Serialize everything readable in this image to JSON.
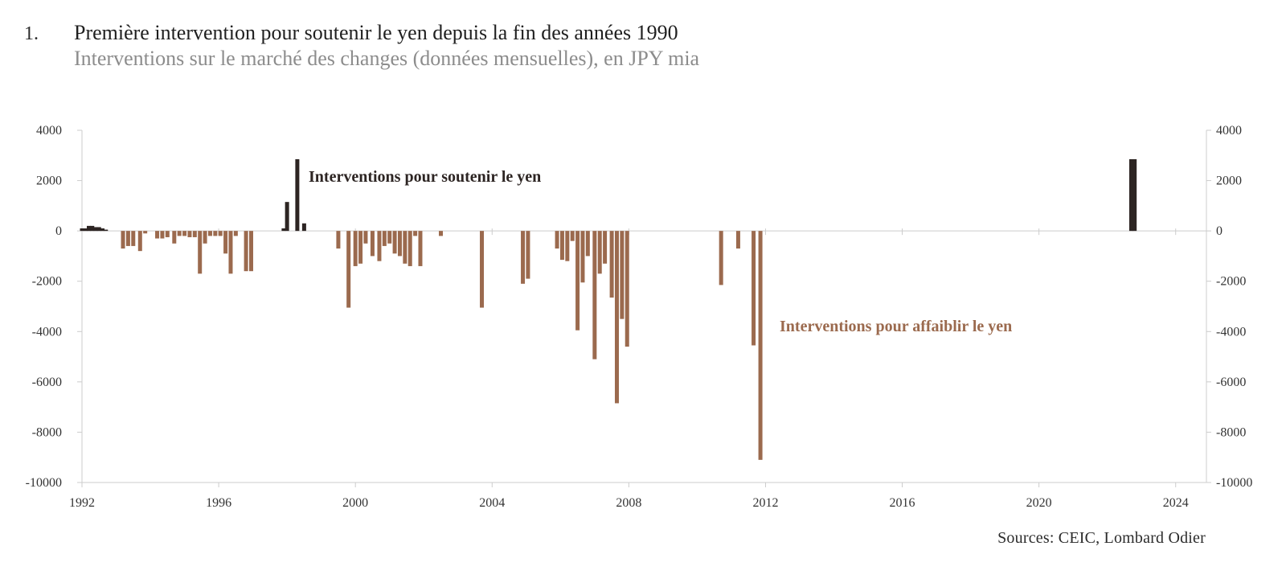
{
  "header": {
    "number": "1.",
    "title": "Première intervention pour soutenir le yen depuis la fin des années 1990",
    "subtitle": "Interventions sur le marché des changes (données mensuelles), en JPY mia"
  },
  "source": "Sources: CEIC, Lombard Odier",
  "colors": {
    "support": "#2d2523",
    "weaken": "#9b6a4e",
    "axis": "#cccccc",
    "text": "#2b2b2b"
  },
  "chart_data": {
    "type": "bar",
    "x_axis": {
      "min": 1992,
      "max": 2024.9,
      "ticks": [
        1992,
        1996,
        2000,
        2004,
        2008,
        2012,
        2016,
        2020,
        2024
      ]
    },
    "y_axis": {
      "min": -10000,
      "max": 4000,
      "ticks": [
        4000,
        2000,
        0,
        -2000,
        -4000,
        -6000,
        -8000,
        -10000
      ],
      "tick_labels": [
        "4000",
        "2000",
        "0",
        "-2000",
        "-4000",
        "-6000",
        "-8000",
        "-10000"
      ],
      "dual": true
    },
    "grid": false,
    "annotations": [
      {
        "text": "Interventions pour soutenir le yen",
        "series": "support"
      },
      {
        "text": "Interventions pour affaiblir le yen",
        "series": "weaken"
      }
    ],
    "series": [
      {
        "key": "support",
        "points": [
          {
            "x": 1992.0,
            "y": 100
          },
          {
            "x": 1992.1,
            "y": 100
          },
          {
            "x": 1992.2,
            "y": 200
          },
          {
            "x": 1992.3,
            "y": 200
          },
          {
            "x": 1992.4,
            "y": 150
          },
          {
            "x": 1992.5,
            "y": 150
          },
          {
            "x": 1992.6,
            "y": 100
          },
          {
            "x": 1992.7,
            "y": 50
          },
          {
            "x": 1997.9,
            "y": 100
          },
          {
            "x": 1998.0,
            "y": 1150
          },
          {
            "x": 1998.3,
            "y": 2850
          },
          {
            "x": 1998.5,
            "y": 300
          },
          {
            "x": 2022.7,
            "y": 2850
          },
          {
            "x": 2022.8,
            "y": 2850
          }
        ]
      },
      {
        "key": "weaken",
        "points": [
          {
            "x": 1993.2,
            "y": -700
          },
          {
            "x": 1993.35,
            "y": -600
          },
          {
            "x": 1993.5,
            "y": -600
          },
          {
            "x": 1993.7,
            "y": -800
          },
          {
            "x": 1993.85,
            "y": -100
          },
          {
            "x": 1994.2,
            "y": -300
          },
          {
            "x": 1994.35,
            "y": -300
          },
          {
            "x": 1994.5,
            "y": -250
          },
          {
            "x": 1994.7,
            "y": -500
          },
          {
            "x": 1994.85,
            "y": -200
          },
          {
            "x": 1995.0,
            "y": -200
          },
          {
            "x": 1995.15,
            "y": -250
          },
          {
            "x": 1995.3,
            "y": -250
          },
          {
            "x": 1995.45,
            "y": -1700
          },
          {
            "x": 1995.6,
            "y": -500
          },
          {
            "x": 1995.75,
            "y": -200
          },
          {
            "x": 1995.9,
            "y": -200
          },
          {
            "x": 1996.05,
            "y": -200
          },
          {
            "x": 1996.2,
            "y": -900
          },
          {
            "x": 1996.35,
            "y": -1700
          },
          {
            "x": 1996.5,
            "y": -200
          },
          {
            "x": 1996.8,
            "y": -1600
          },
          {
            "x": 1996.95,
            "y": -1600
          },
          {
            "x": 1999.5,
            "y": -700
          },
          {
            "x": 1999.8,
            "y": -3050
          },
          {
            "x": 2000.0,
            "y": -1400
          },
          {
            "x": 2000.15,
            "y": -1300
          },
          {
            "x": 2000.3,
            "y": -500
          },
          {
            "x": 2000.5,
            "y": -1000
          },
          {
            "x": 2000.7,
            "y": -1200
          },
          {
            "x": 2000.85,
            "y": -600
          },
          {
            "x": 2001.0,
            "y": -500
          },
          {
            "x": 2001.15,
            "y": -900
          },
          {
            "x": 2001.3,
            "y": -1000
          },
          {
            "x": 2001.45,
            "y": -1300
          },
          {
            "x": 2001.6,
            "y": -1400
          },
          {
            "x": 2001.75,
            "y": -200
          },
          {
            "x": 2001.9,
            "y": -1400
          },
          {
            "x": 2002.5,
            "y": -200
          },
          {
            "x": 2003.7,
            "y": -3050
          },
          {
            "x": 2004.9,
            "y": -2100
          },
          {
            "x": 2005.05,
            "y": -1900
          },
          {
            "x": 2005.9,
            "y": -700
          },
          {
            "x": 2006.05,
            "y": -1150
          },
          {
            "x": 2006.2,
            "y": -1200
          },
          {
            "x": 2006.35,
            "y": -400
          },
          {
            "x": 2006.5,
            "y": -3950
          },
          {
            "x": 2006.65,
            "y": -2050
          },
          {
            "x": 2006.8,
            "y": -1000
          },
          {
            "x": 2007.0,
            "y": -5100
          },
          {
            "x": 2007.15,
            "y": -1700
          },
          {
            "x": 2007.3,
            "y": -1300
          },
          {
            "x": 2007.5,
            "y": -2650
          },
          {
            "x": 2007.65,
            "y": -6850
          },
          {
            "x": 2007.8,
            "y": -3500
          },
          {
            "x": 2007.95,
            "y": -4600
          },
          {
            "x": 2010.7,
            "y": -2150
          },
          {
            "x": 2011.2,
            "y": -700
          },
          {
            "x": 2011.65,
            "y": -4550
          },
          {
            "x": 2011.85,
            "y": -9100
          }
        ]
      }
    ]
  }
}
